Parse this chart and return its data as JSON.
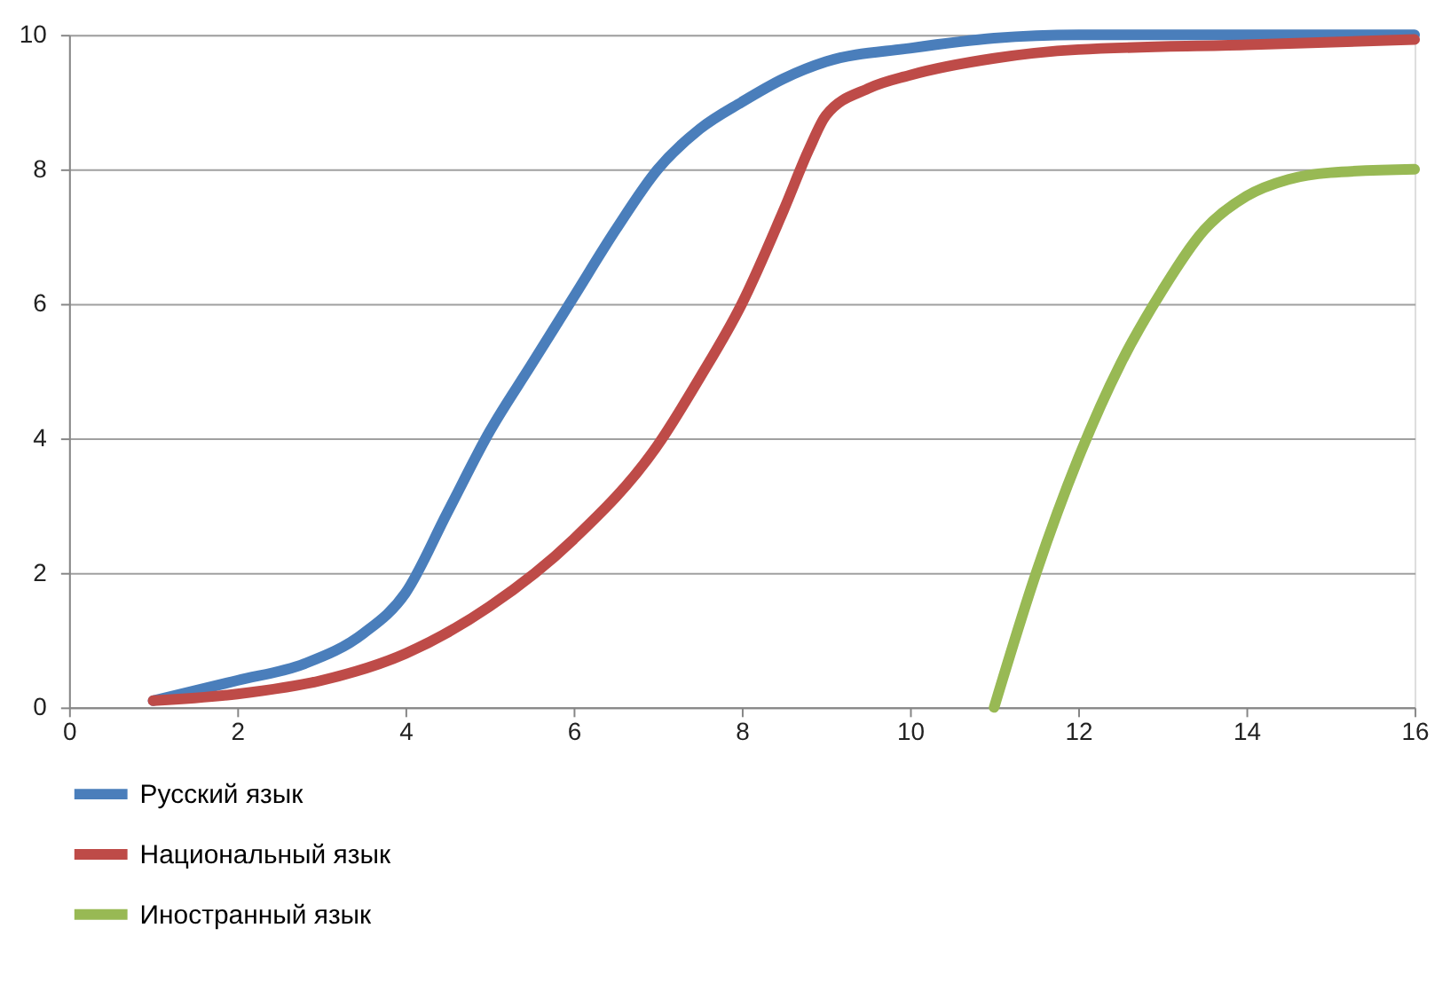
{
  "chart_data": {
    "type": "line",
    "xlim": [
      0,
      16
    ],
    "xticks": [
      0,
      2,
      4,
      6,
      8,
      10,
      12,
      14,
      16
    ],
    "ylim": [
      0,
      10
    ],
    "yticks": [
      0,
      2,
      4,
      6,
      8,
      10
    ],
    "grid": "y",
    "legend": "bottom",
    "marker": "none",
    "line_style": "solid",
    "series": [
      {
        "name": "Русский язык",
        "color": "#4a7ebb",
        "x": [
          1,
          2,
          2.8,
          3.5,
          4,
          4.5,
          5,
          5.5,
          6,
          6.5,
          7,
          7.5,
          8,
          8.5,
          9,
          10,
          11,
          12,
          14,
          16
        ],
        "values": [
          0.1,
          0.4,
          0.65,
          1.1,
          1.7,
          2.9,
          4.1,
          5.1,
          6.1,
          7.1,
          8.0,
          8.6,
          9.0,
          9.35,
          9.6,
          9.8,
          9.95,
          10,
          10,
          10
        ]
      },
      {
        "name": "Национальный язык",
        "color": "#be4b48",
        "x": [
          1,
          2,
          3,
          4,
          5,
          6,
          7,
          7.5,
          8,
          8.5,
          8.8,
          9,
          9.5,
          10,
          11,
          12,
          14,
          16
        ],
        "values": [
          0.1,
          0.2,
          0.4,
          0.8,
          1.5,
          2.5,
          3.9,
          4.9,
          6.0,
          7.4,
          8.3,
          8.8,
          9.2,
          9.4,
          9.65,
          9.78,
          9.85,
          9.93
        ]
      },
      {
        "name": "Иностранный язык",
        "color": "#98b954",
        "x": [
          11,
          11.5,
          12,
          12.5,
          13,
          13.5,
          14,
          14.5,
          15,
          16
        ],
        "values": [
          0,
          2,
          3.7,
          5.1,
          6.2,
          7.1,
          7.6,
          7.85,
          7.95,
          8
        ]
      }
    ]
  }
}
